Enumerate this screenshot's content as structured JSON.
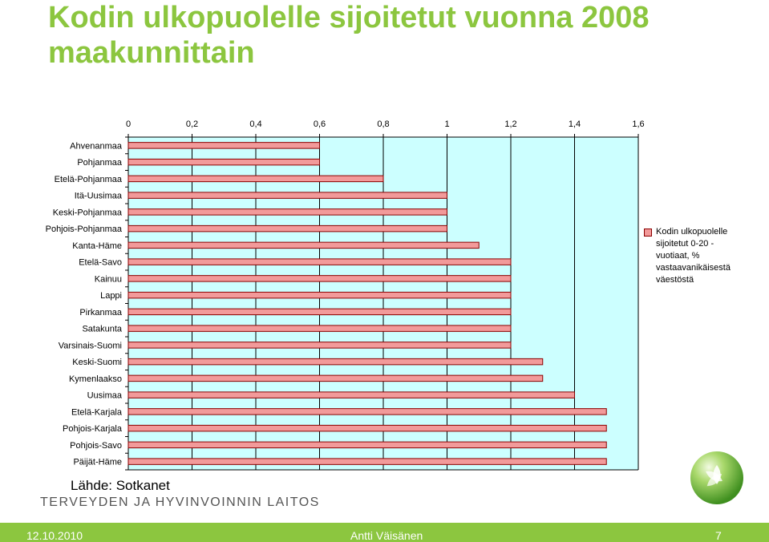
{
  "title": "Kodin ulkopuolelle sijoitetut vuonna 2008 maakunnittain",
  "source": "Lähde: Sotkanet",
  "organization": "TERVEYDEN JA HYVINVOINNIN LAITOS",
  "footer": {
    "date": "12.10.2010",
    "author": "Antti Väisänen",
    "page": "7",
    "color": "#8cc63f"
  },
  "colors": {
    "title": "#8cc63f",
    "bar_fill": "#f29a9a",
    "bar_stroke": "#8b0000",
    "plot_background": "#ccffff"
  },
  "chart_data": {
    "type": "bar",
    "orientation": "horizontal",
    "x_axis_position": "top",
    "xlim": [
      0,
      1.6
    ],
    "x_ticks": [
      "0",
      "0,2",
      "0,4",
      "0,6",
      "0,8",
      "1",
      "1,2",
      "1,4",
      "1,6"
    ],
    "categories": [
      "Ahvenanmaa",
      "Pohjanmaa",
      "Etelä-Pohjanmaa",
      "Itä-Uusimaa",
      "Keski-Pohjanmaa",
      "Pohjois-Pohjanmaa",
      "Kanta-Häme",
      "Etelä-Savo",
      "Kainuu",
      "Lappi",
      "Pirkanmaa",
      "Satakunta",
      "Varsinais-Suomi",
      "Keski-Suomi",
      "Kymenlaakso",
      "Uusimaa",
      "Etelä-Karjala",
      "Pohjois-Karjala",
      "Pohjois-Savo",
      "Päijät-Häme"
    ],
    "series": [
      {
        "name": "Kodin ulkopuolelle sijoitetut 0-20 -vuotiaat, % vastaavanikäisestä väestöstä",
        "values": [
          0.6,
          0.6,
          0.8,
          1.0,
          1.0,
          1.0,
          1.1,
          1.2,
          1.2,
          1.2,
          1.2,
          1.2,
          1.2,
          1.3,
          1.3,
          1.4,
          1.5,
          1.5,
          1.5,
          1.5
        ]
      }
    ],
    "legend_position": "right",
    "grid": "vertical gridlines"
  }
}
